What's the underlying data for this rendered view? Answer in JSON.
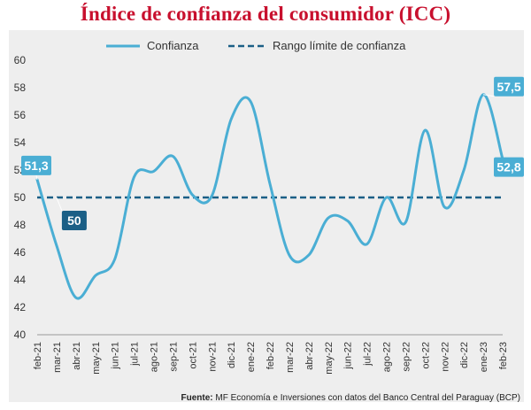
{
  "title": "Índice de confianza del consumidor (ICC)",
  "source": {
    "label": "Fuente:",
    "text": "MF Economía e Inversiones con datos del Banco Central del Paraguay (BCP)"
  },
  "colors": {
    "title": "#c8102e",
    "series_line": "#4aaed4",
    "threshold_line": "#1b5f86",
    "label_box_light": "#4aaed4",
    "label_box_dark": "#1b5f86",
    "background": "#eeeeee"
  },
  "chart_data": {
    "type": "line",
    "title": "Índice de confianza del consumidor (ICC)",
    "ylim": [
      40,
      60
    ],
    "yticks": [
      40,
      42,
      44,
      46,
      48,
      50,
      52,
      54,
      56,
      58,
      60
    ],
    "grid": false,
    "legend_position": "top",
    "categories": [
      "feb-21",
      "mar-21",
      "abr-21",
      "may-21",
      "jun-21",
      "jul-21",
      "ago-21",
      "sep-21",
      "oct-21",
      "nov-21",
      "dic-21",
      "ene-22",
      "feb-22",
      "mar-22",
      "abr-22",
      "may-22",
      "jun-22",
      "jul-22",
      "ago-22",
      "sep-22",
      "oct-22",
      "nov-22",
      "dic-22",
      "ene-23",
      "feb-23"
    ],
    "series": [
      {
        "name": "Confianza",
        "values": [
          51.3,
          46.5,
          42.7,
          44.3,
          45.5,
          51.5,
          51.9,
          53.0,
          50.2,
          50.1,
          55.7,
          57.0,
          51.0,
          45.8,
          45.8,
          48.5,
          48.3,
          46.6,
          50.0,
          48.2,
          54.9,
          49.3,
          52.0,
          57.5,
          52.8
        ]
      },
      {
        "name": "Rango límite de confianza",
        "values": [
          50,
          50,
          50,
          50,
          50,
          50,
          50,
          50,
          50,
          50,
          50,
          50,
          50,
          50,
          50,
          50,
          50,
          50,
          50,
          50,
          50,
          50,
          50,
          50,
          50
        ]
      }
    ],
    "annotations": [
      {
        "category": "feb-21",
        "value": 51.3,
        "text": "51,3",
        "style": "light"
      },
      {
        "category": "mar-21",
        "value": 50,
        "text": "50",
        "style": "dark"
      },
      {
        "category": "ene-23",
        "value": 57.5,
        "text": "57,5",
        "style": "light"
      },
      {
        "category": "feb-23",
        "value": 52.8,
        "text": "52,8",
        "style": "light"
      }
    ]
  }
}
